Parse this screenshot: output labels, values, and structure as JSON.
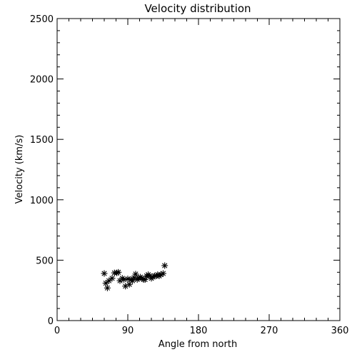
{
  "chart_data": {
    "type": "scatter",
    "title": "Velocity distribution",
    "xlabel": "Angle from north",
    "ylabel": "Velocity (km/s)",
    "xlim": [
      0,
      360
    ],
    "ylim": [
      0,
      2500
    ],
    "xticks": [
      "0",
      "90",
      "180",
      "270",
      "360"
    ],
    "yticks": [
      "0",
      "500",
      "1000",
      "1500",
      "2000",
      "2500"
    ],
    "xtick_values": [
      0,
      90,
      180,
      270,
      360
    ],
    "ytick_values": [
      0,
      500,
      1000,
      1500,
      2000,
      2500
    ],
    "grid": false,
    "marker": "asterisk",
    "color": "#000000",
    "series": [
      {
        "x": [
          60,
          62,
          64,
          66,
          70,
          73,
          76,
          78,
          80,
          83,
          85,
          87,
          90,
          92,
          94,
          96,
          98,
          100,
          102,
          104,
          106,
          108,
          110,
          112,
          114,
          116,
          118,
          120,
          122,
          124,
          126,
          128,
          130,
          132,
          135,
          137
        ],
        "y": [
          390,
          310,
          270,
          330,
          350,
          395,
          395,
          400,
          330,
          350,
          340,
          285,
          345,
          300,
          340,
          330,
          355,
          385,
          340,
          350,
          360,
          350,
          340,
          340,
          370,
          380,
          370,
          350,
          360,
          370,
          370,
          380,
          370,
          380,
          390,
          455
        ]
      }
    ]
  }
}
